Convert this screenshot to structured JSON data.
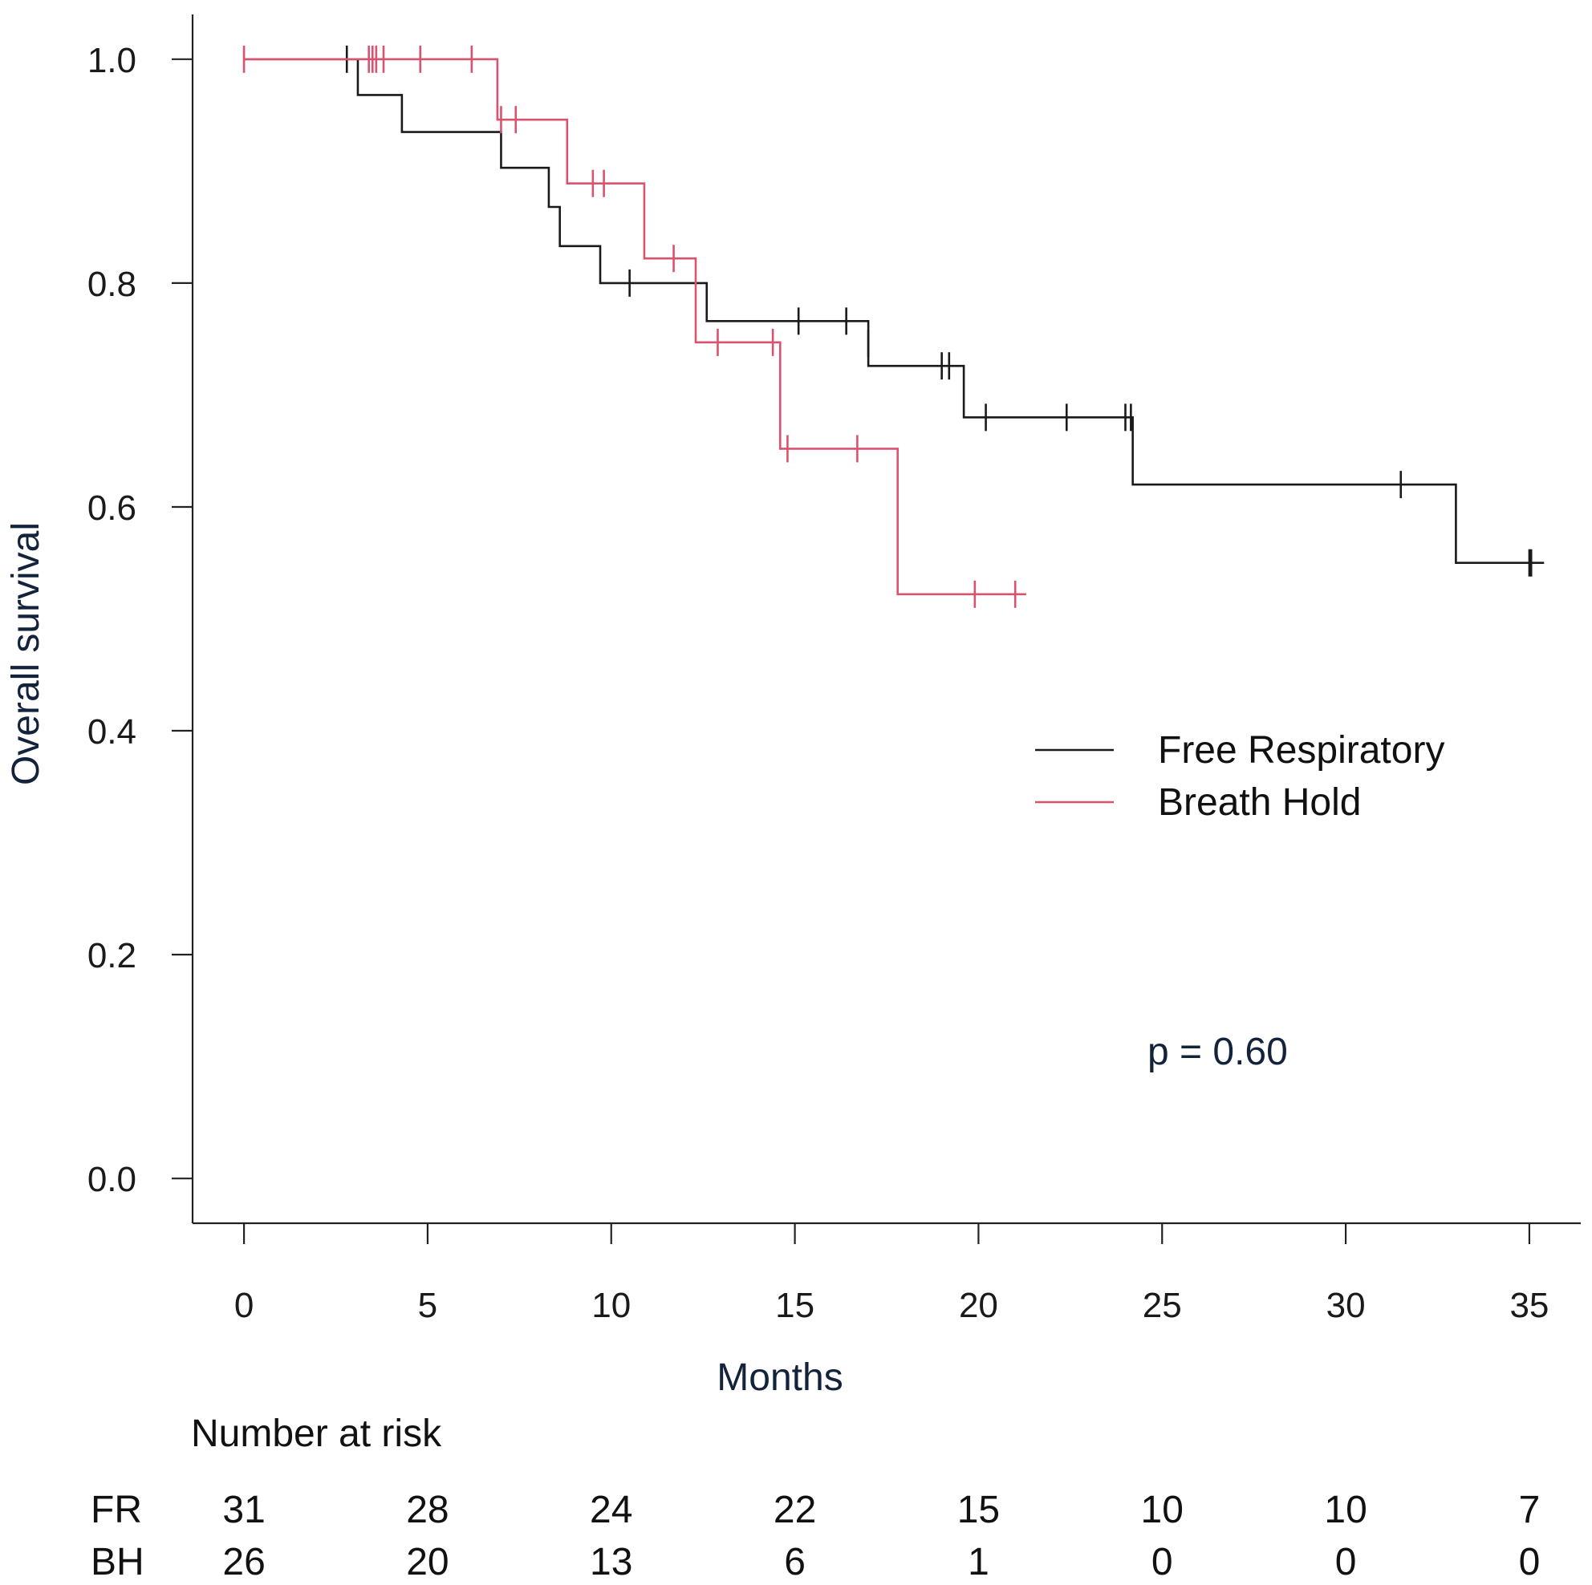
{
  "chart_data": {
    "type": "line",
    "subtype": "kaplan-meier",
    "xlabel": "Months",
    "ylabel": "Overall survival",
    "xlim": [
      -1.4,
      36.4
    ],
    "ylim": [
      -0.04,
      1.04
    ],
    "x_ticks": [
      0,
      5,
      10,
      15,
      20,
      25,
      30,
      35
    ],
    "y_ticks": [
      0.0,
      0.2,
      0.4,
      0.6,
      0.8,
      1.0
    ],
    "y_tick_labels": [
      "0.0",
      "0.2",
      "0.4",
      "0.6",
      "0.8",
      "1.0"
    ],
    "grid": false,
    "legend_position": "right",
    "annotation": "p = 0.60",
    "series": [
      {
        "name": "Free Respiratory",
        "color": "#1a1a1a",
        "steps": [
          [
            0,
            1.0
          ],
          [
            3.1,
            0.968
          ],
          [
            4.3,
            0.935
          ],
          [
            7.0,
            0.903
          ],
          [
            8.3,
            0.868
          ],
          [
            8.6,
            0.833
          ],
          [
            9.7,
            0.8
          ],
          [
            12.6,
            0.766
          ],
          [
            17.0,
            0.726
          ],
          [
            19.6,
            0.68
          ],
          [
            24.2,
            0.62
          ],
          [
            33.0,
            0.55
          ]
        ],
        "end": 35.4,
        "censors": [
          [
            2.8,
            1.0
          ],
          [
            10.5,
            0.8
          ],
          [
            15.1,
            0.766
          ],
          [
            16.4,
            0.766
          ],
          [
            17.0,
            0.746
          ],
          [
            19.0,
            0.726
          ],
          [
            19.2,
            0.726
          ],
          [
            20.2,
            0.68
          ],
          [
            22.4,
            0.68
          ],
          [
            24.0,
            0.68
          ],
          [
            24.15,
            0.68
          ],
          [
            31.5,
            0.62
          ],
          [
            35.0,
            0.55
          ],
          [
            35.05,
            0.55
          ]
        ]
      },
      {
        "name": "Breath Hold",
        "color": "#d9536f",
        "steps": [
          [
            0,
            1.0
          ],
          [
            6.9,
            0.946
          ],
          [
            8.8,
            0.889
          ],
          [
            10.9,
            0.822
          ],
          [
            12.3,
            0.747
          ],
          [
            14.6,
            0.652
          ],
          [
            17.8,
            0.522
          ]
        ],
        "end": 21.3,
        "censors": [
          [
            0,
            1.0
          ],
          [
            3.4,
            1.0
          ],
          [
            3.5,
            1.0
          ],
          [
            3.6,
            1.0
          ],
          [
            3.8,
            1.0
          ],
          [
            4.8,
            1.0
          ],
          [
            6.2,
            1.0
          ],
          [
            7.0,
            0.946
          ],
          [
            7.4,
            0.946
          ],
          [
            9.5,
            0.889
          ],
          [
            9.8,
            0.889
          ],
          [
            11.7,
            0.822
          ],
          [
            12.9,
            0.747
          ],
          [
            14.4,
            0.747
          ],
          [
            14.8,
            0.652
          ],
          [
            16.7,
            0.652
          ],
          [
            19.9,
            0.522
          ],
          [
            21.0,
            0.522
          ]
        ]
      }
    ],
    "risk_table": {
      "title": "Number at risk",
      "rows": [
        {
          "label": "FR",
          "values": [
            "31",
            "28",
            "24",
            "22",
            "15",
            "10",
            "10",
            "7"
          ]
        },
        {
          "label": "BH",
          "values": [
            "26",
            "20",
            "13",
            "6",
            "1",
            "0",
            "0",
            "0"
          ]
        }
      ]
    }
  }
}
